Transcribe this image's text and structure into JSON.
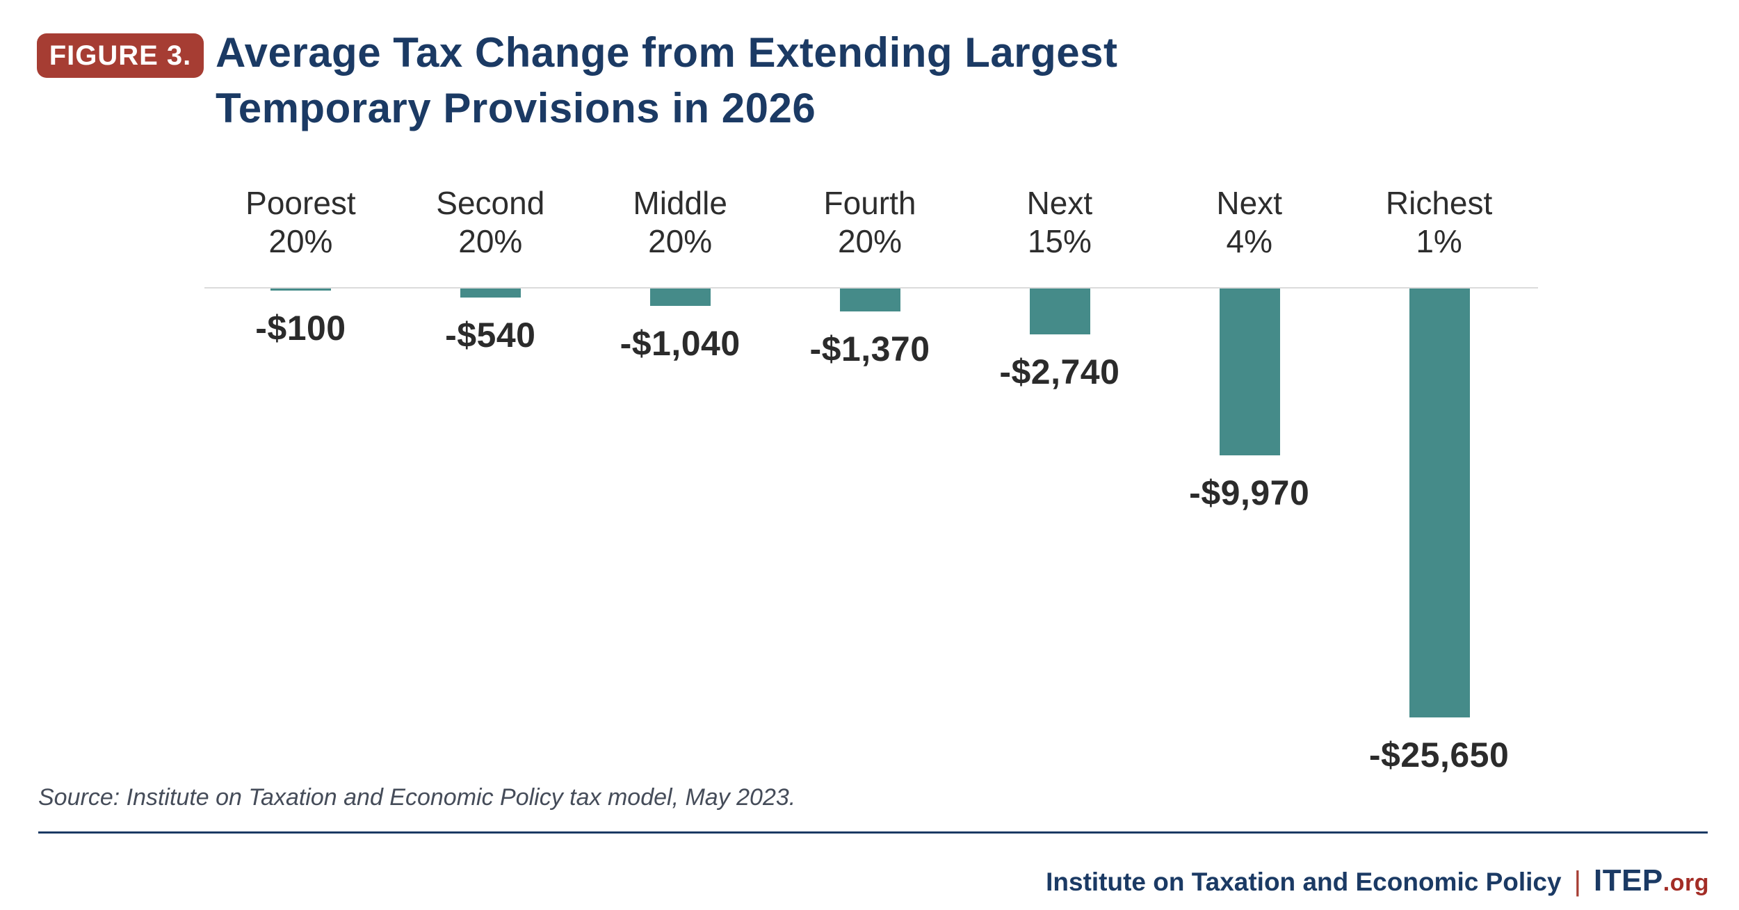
{
  "figure": {
    "badge": "FIGURE 3.",
    "title_line1": "Average Tax Change from Extending Largest",
    "title_line2": "Temporary Provisions in 2026"
  },
  "chart_data": {
    "type": "bar",
    "title": "Average Tax Change from Extending Largest Temporary Provisions in 2026",
    "categories": [
      "Poorest 20%",
      "Second 20%",
      "Middle 20%",
      "Fourth 20%",
      "Next 15%",
      "Next 4%",
      "Richest 1%"
    ],
    "category_lines": [
      [
        "Poorest",
        "20%"
      ],
      [
        "Second",
        "20%"
      ],
      [
        "Middle",
        "20%"
      ],
      [
        "Fourth",
        "20%"
      ],
      [
        "Next",
        "15%"
      ],
      [
        "Next",
        "4%"
      ],
      [
        "Richest",
        "1%"
      ]
    ],
    "values": [
      -100,
      -540,
      -1040,
      -1370,
      -2740,
      -9970,
      -25650
    ],
    "value_labels": [
      "-$100",
      "-$540",
      "-$1,040",
      "-$1,370",
      "-$2,740",
      "-$9,970",
      "-$25,650"
    ],
    "unit": "USD",
    "xlabel": "",
    "ylabel": "",
    "ylim": [
      -25650,
      0
    ],
    "baseline": 0,
    "grid": "baseline-only",
    "orientation": "vertical-negative",
    "legend": "none",
    "value_label_position": "below-bar",
    "category_label_position": "above-baseline"
  },
  "source_note": "Source: Institute on Taxation and Economic Policy tax model, May 2023.",
  "footer": {
    "org_name": "Institute on Taxation and Economic Policy",
    "separator": "|",
    "brand": "ITEP",
    "brand_suffix": ".org"
  },
  "colors": {
    "bar_teal": "#458B89",
    "navy": "#1B3A64",
    "badge_red": "#A63D33",
    "brand_red": "#A32D26",
    "text_dark": "#2B2B2B",
    "gridline": "#DBDBDB"
  }
}
